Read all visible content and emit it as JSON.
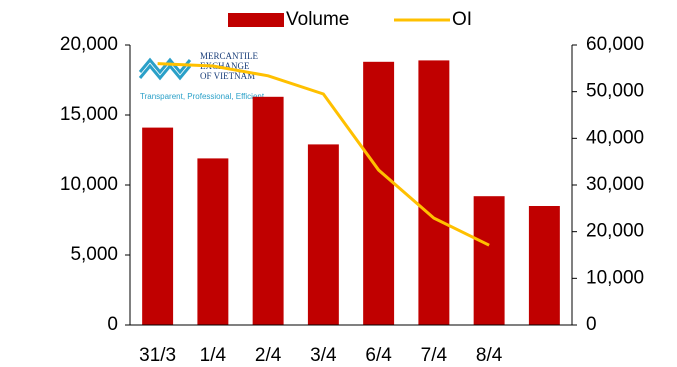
{
  "chart_data": {
    "type": "bar-line",
    "logo": {
      "name": [
        "MERCANTILE",
        "EXCHANGE",
        "OF VIETNAM"
      ],
      "tagline": "Transparent, Professional, Efficient"
    },
    "categories": [
      "31/3",
      "1/4",
      "2/4",
      "3/4",
      "6/4",
      "7/4",
      "8/4",
      null
    ],
    "series": [
      {
        "name": "Volume",
        "color": "#c00000",
        "values": [
          14100,
          11900,
          16300,
          12900,
          18800,
          18900,
          9200,
          8500
        ]
      },
      {
        "name": "OI",
        "color": "#ffc000",
        "axis": "y2",
        "values": [
          56000,
          55500,
          53400,
          49500,
          33200,
          22900,
          17100,
          null
        ]
      }
    ],
    "ylim": [
      0,
      20000
    ],
    "yticks": [
      0,
      {
        "value": 5000,
        "label": "5,000"
      },
      {
        "value": 10000,
        "label": "10,000"
      },
      {
        "value": 15000,
        "label": "15,000"
      },
      {
        "value": 20000,
        "label": "20,000"
      }
    ],
    "y2lim": [
      0,
      60000
    ],
    "y2ticks": [
      0,
      {
        "value": 10000,
        "label": "10,000"
      },
      {
        "value": 20000,
        "label": "20,000"
      },
      {
        "value": 30000,
        "label": "30,000"
      },
      {
        "value": 40000,
        "label": "40,000"
      },
      {
        "value": 50000,
        "label": "50,000"
      },
      {
        "value": 60000,
        "label": "60,000"
      }
    ],
    "legend": "top"
  }
}
